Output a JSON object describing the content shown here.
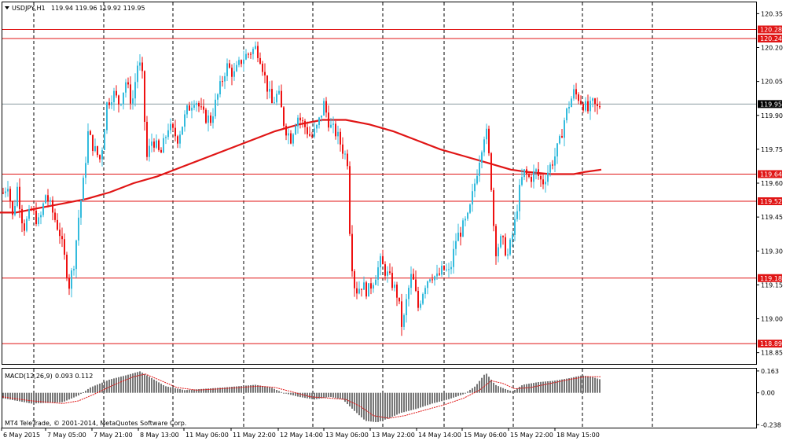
{
  "header": {
    "symbol_label": "USDJPY,H1",
    "ohlc_label": "119.94 119.96 119.92 119.95"
  },
  "macd": {
    "label": "MACD(12,26,9)",
    "values_label": "0.093 0.112"
  },
  "copyright": "MT4 TeleTrade, © 2001-2014, MetaQuotes Software Corp.",
  "colors": {
    "bull": "#33bbdd",
    "bear": "#ee1111",
    "ma": "#e01515",
    "level": "#e01515",
    "bid": "#8a9aa0",
    "histogram": "#777777",
    "signal": "#e01515",
    "grid": "#000000"
  },
  "chart_data": {
    "type": "candlestick",
    "symbol": "USDJPY",
    "timeframe": "H1",
    "ylim": [
      118.8,
      120.4
    ],
    "price_ticks": [
      "120.35",
      "120.20",
      "120.05",
      "119.90",
      "119.75",
      "119.60",
      "119.45",
      "119.30",
      "119.15",
      "119.00",
      "118.85"
    ],
    "time_labels": [
      "6 May 2015",
      "7 May 05:00",
      "7 May 21:00",
      "8 May 13:00",
      "11 May 06:00",
      "11 May 22:00",
      "12 May 14:00",
      "13 May 06:00",
      "13 May 22:00",
      "14 May 14:00",
      "15 May 06:00",
      "15 May 22:00",
      "18 May 15:00"
    ],
    "levels": [
      {
        "value": 120.28,
        "label": "120.28"
      },
      {
        "value": 120.24,
        "label": "120.24"
      },
      {
        "value": 119.64,
        "label": "119.64"
      },
      {
        "value": 119.52,
        "label": "119.52"
      },
      {
        "value": 119.18,
        "label": "119.18"
      },
      {
        "value": 118.89,
        "label": "118.89"
      }
    ],
    "current_price": {
      "value": 119.95,
      "label": "119.95"
    },
    "moving_average": {
      "points": [
        [
          0,
          119.47
        ],
        [
          20,
          119.47
        ],
        [
          50,
          119.49
        ],
        [
          80,
          119.51
        ],
        [
          110,
          119.53
        ],
        [
          140,
          119.56
        ],
        [
          170,
          119.6
        ],
        [
          200,
          119.63
        ],
        [
          230,
          119.67
        ],
        [
          260,
          119.71
        ],
        [
          290,
          119.75
        ],
        [
          320,
          119.79
        ],
        [
          350,
          119.83
        ],
        [
          380,
          119.86
        ],
        [
          410,
          119.88
        ],
        [
          440,
          119.88
        ],
        [
          470,
          119.86
        ],
        [
          500,
          119.83
        ],
        [
          530,
          119.79
        ],
        [
          560,
          119.75
        ],
        [
          590,
          119.72
        ],
        [
          620,
          119.69
        ],
        [
          650,
          119.66
        ],
        [
          670,
          119.65
        ],
        [
          700,
          119.64
        ],
        [
          730,
          119.64
        ],
        [
          745,
          119.65
        ],
        [
          765,
          119.66
        ]
      ]
    },
    "price_path": [
      [
        3,
        119.55
      ],
      [
        10,
        119.6
      ],
      [
        16,
        119.45
      ],
      [
        22,
        119.58
      ],
      [
        30,
        119.4
      ],
      [
        40,
        119.48
      ],
      [
        50,
        119.42
      ],
      [
        58,
        119.55
      ],
      [
        66,
        119.48
      ],
      [
        76,
        119.38
      ],
      [
        83,
        119.25
      ],
      [
        88,
        119.15
      ],
      [
        94,
        119.25
      ],
      [
        100,
        119.45
      ],
      [
        106,
        119.6
      ],
      [
        112,
        119.82
      ],
      [
        120,
        119.75
      ],
      [
        128,
        119.7
      ],
      [
        136,
        119.95
      ],
      [
        144,
        120.0
      ],
      [
        152,
        119.95
      ],
      [
        160,
        120.05
      ],
      [
        168,
        119.95
      ],
      [
        176,
        120.15
      ],
      [
        182,
        120.05
      ],
      [
        186,
        119.7
      ],
      [
        194,
        119.8
      ],
      [
        204,
        119.72
      ],
      [
        214,
        119.85
      ],
      [
        226,
        119.8
      ],
      [
        238,
        119.92
      ],
      [
        248,
        119.98
      ],
      [
        258,
        119.9
      ],
      [
        268,
        119.88
      ],
      [
        278,
        120.0
      ],
      [
        288,
        120.12
      ],
      [
        298,
        120.08
      ],
      [
        308,
        120.15
      ],
      [
        318,
        120.18
      ],
      [
        326,
        120.2
      ],
      [
        332,
        120.15
      ],
      [
        338,
        120.05
      ],
      [
        346,
        119.95
      ],
      [
        354,
        120.0
      ],
      [
        362,
        119.85
      ],
      [
        370,
        119.8
      ],
      [
        378,
        119.9
      ],
      [
        388,
        119.85
      ],
      [
        396,
        119.8
      ],
      [
        404,
        119.85
      ],
      [
        412,
        119.95
      ],
      [
        420,
        119.85
      ],
      [
        428,
        119.82
      ],
      [
        436,
        119.75
      ],
      [
        442,
        119.7
      ],
      [
        446,
        119.3
      ],
      [
        452,
        119.12
      ],
      [
        460,
        119.15
      ],
      [
        468,
        119.12
      ],
      [
        476,
        119.18
      ],
      [
        484,
        119.25
      ],
      [
        492,
        119.2
      ],
      [
        500,
        119.15
      ],
      [
        506,
        119.1
      ],
      [
        512,
        118.95
      ],
      [
        518,
        119.1
      ],
      [
        524,
        119.2
      ],
      [
        532,
        119.05
      ],
      [
        540,
        119.15
      ],
      [
        548,
        119.2
      ],
      [
        556,
        119.18
      ],
      [
        564,
        119.22
      ],
      [
        572,
        119.2
      ],
      [
        580,
        119.35
      ],
      [
        588,
        119.4
      ],
      [
        596,
        119.45
      ],
      [
        604,
        119.6
      ],
      [
        612,
        119.75
      ],
      [
        618,
        119.85
      ],
      [
        624,
        119.65
      ],
      [
        630,
        119.3
      ],
      [
        638,
        119.35
      ],
      [
        646,
        119.28
      ],
      [
        654,
        119.4
      ],
      [
        660,
        119.55
      ],
      [
        666,
        119.65
      ],
      [
        674,
        119.62
      ],
      [
        682,
        119.65
      ],
      [
        690,
        119.6
      ],
      [
        698,
        119.66
      ],
      [
        706,
        119.72
      ],
      [
        712,
        119.78
      ],
      [
        718,
        119.88
      ],
      [
        724,
        119.95
      ],
      [
        730,
        120.0
      ],
      [
        736,
        119.98
      ],
      [
        742,
        119.95
      ],
      [
        748,
        119.92
      ],
      [
        754,
        119.95
      ],
      [
        760,
        119.93
      ],
      [
        764,
        119.95
      ]
    ],
    "macd_ylim": [
      -0.26,
      0.18
    ],
    "macd_ticks": [
      "0.163",
      "0.00",
      "-0.238"
    ],
    "macd_histogram": [
      [
        3,
        -0.04
      ],
      [
        40,
        -0.08
      ],
      [
        80,
        -0.07
      ],
      [
        100,
        -0.02
      ],
      [
        115,
        0.04
      ],
      [
        140,
        0.1
      ],
      [
        160,
        0.13
      ],
      [
        178,
        0.16
      ],
      [
        190,
        0.12
      ],
      [
        210,
        0.05
      ],
      [
        235,
        0.02
      ],
      [
        260,
        0.03
      ],
      [
        285,
        0.04
      ],
      [
        305,
        0.05
      ],
      [
        325,
        0.06
      ],
      [
        345,
        0.04
      ],
      [
        360,
        0.0
      ],
      [
        380,
        -0.03
      ],
      [
        400,
        -0.05
      ],
      [
        420,
        -0.03
      ],
      [
        436,
        -0.05
      ],
      [
        450,
        -0.13
      ],
      [
        465,
        -0.21
      ],
      [
        480,
        -0.22
      ],
      [
        495,
        -0.19
      ],
      [
        510,
        -0.15
      ],
      [
        530,
        -0.12
      ],
      [
        550,
        -0.08
      ],
      [
        570,
        -0.05
      ],
      [
        590,
        -0.01
      ],
      [
        605,
        0.05
      ],
      [
        618,
        0.15
      ],
      [
        630,
        0.06
      ],
      [
        642,
        0.03
      ],
      [
        652,
        0.01
      ],
      [
        665,
        0.06
      ],
      [
        685,
        0.08
      ],
      [
        705,
        0.09
      ],
      [
        725,
        0.11
      ],
      [
        740,
        0.13
      ],
      [
        752,
        0.12
      ],
      [
        764,
        0.1
      ]
    ],
    "macd_signal": [
      [
        3,
        -0.03
      ],
      [
        40,
        -0.06
      ],
      [
        80,
        -0.08
      ],
      [
        100,
        -0.06
      ],
      [
        120,
        -0.01
      ],
      [
        145,
        0.06
      ],
      [
        170,
        0.12
      ],
      [
        185,
        0.14
      ],
      [
        205,
        0.09
      ],
      [
        225,
        0.04
      ],
      [
        250,
        0.02
      ],
      [
        280,
        0.03
      ],
      [
        305,
        0.04
      ],
      [
        330,
        0.05
      ],
      [
        350,
        0.04
      ],
      [
        370,
        0.01
      ],
      [
        395,
        -0.03
      ],
      [
        420,
        -0.04
      ],
      [
        440,
        -0.05
      ],
      [
        458,
        -0.1
      ],
      [
        475,
        -0.17
      ],
      [
        495,
        -0.19
      ],
      [
        515,
        -0.17
      ],
      [
        540,
        -0.13
      ],
      [
        565,
        -0.09
      ],
      [
        590,
        -0.04
      ],
      [
        610,
        0.02
      ],
      [
        625,
        0.09
      ],
      [
        640,
        0.07
      ],
      [
        655,
        0.03
      ],
      [
        675,
        0.04
      ],
      [
        700,
        0.07
      ],
      [
        725,
        0.1
      ],
      [
        745,
        0.12
      ],
      [
        764,
        0.12
      ]
    ]
  }
}
